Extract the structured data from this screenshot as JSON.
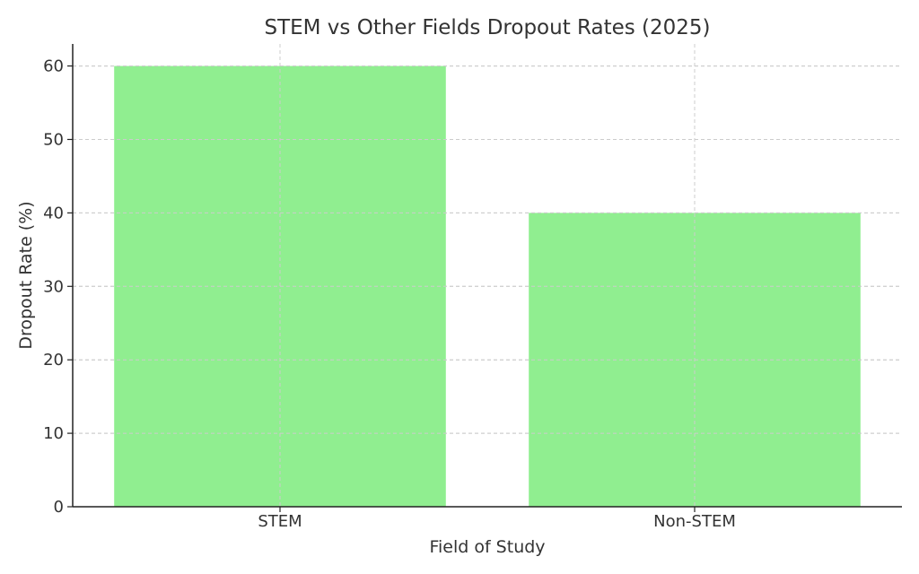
{
  "chart_data": {
    "type": "bar",
    "title": "STEM vs Other Fields Dropout Rates (2025)",
    "xlabel": "Field of Study",
    "ylabel": "Dropout Rate (%)",
    "categories": [
      "STEM",
      "Non-STEM"
    ],
    "values": [
      60,
      40
    ],
    "ylim": [
      0,
      63
    ],
    "yticks": [
      0,
      10,
      20,
      30,
      40,
      50,
      60
    ],
    "grid": true,
    "colors": {
      "bar": "#90ee90"
    }
  }
}
